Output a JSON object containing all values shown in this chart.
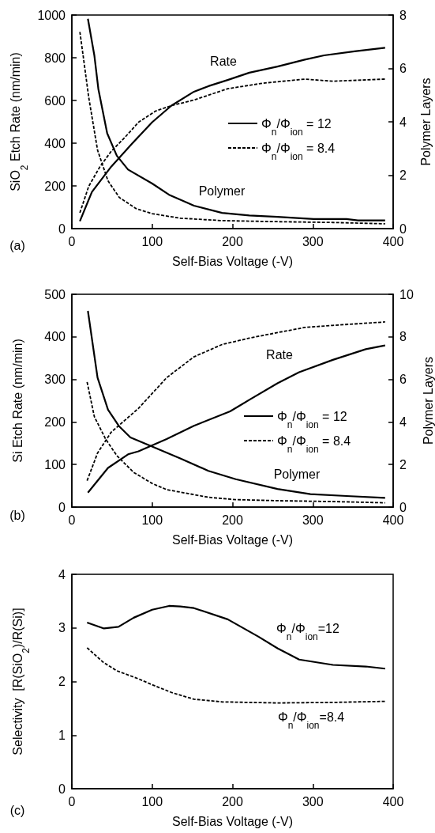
{
  "chart_data": [
    {
      "type": "line",
      "xlabel": "Self-Bias Voltage (-V)",
      "ylabel": "SiO$_{2}$ Etch Rate (nm/min)",
      "y2label": "Polymer Layers",
      "xlim": [
        0,
        400
      ],
      "xticks": [
        0,
        100,
        200,
        300,
        400
      ],
      "ylim": [
        0,
        1000
      ],
      "yticks": [
        0,
        200,
        400,
        600,
        800,
        1000
      ],
      "y2lim": [
        0,
        8
      ],
      "y2ticks": [
        0,
        2,
        4,
        6,
        8
      ],
      "grid": false,
      "legend": "right",
      "marker": "none",
      "annotations": [
        "(a)",
        "Rate",
        "Polymer"
      ],
      "series": [
        {
          "name": "Φ$_{n}$/Φ$_{ion}$ = 12",
          "color": "#000000",
          "line_style": "solid",
          "x": [
            10,
            25,
            49,
            75,
            100,
            124,
            152,
            170,
            194,
            221,
            256,
            290,
            314,
            352,
            390
          ],
          "values": [
            35,
            172,
            290,
            398,
            498,
            576,
            641,
            667,
            696,
            730,
            759,
            791,
            811,
            830,
            847
          ]
        },
        {
          "name": "Φ$_{n}$/Φ$_{ion}$ = 8.4",
          "color": "#000000",
          "line_style": "dashed",
          "x": [
            10,
            21,
            35,
            49,
            66,
            83,
            104,
            124,
            152,
            194,
            238,
            290,
            325,
            390
          ],
          "values": [
            74,
            198,
            290,
            362,
            427,
            498,
            550,
            576,
            602,
            655,
            681,
            700,
            690,
            700
          ]
        },
        {
          "color": "#000000",
          "line_style": "solid",
          "axis": "y2",
          "x": [
            20,
            28,
            33,
            44,
            56,
            70,
            100,
            121,
            152,
            187,
            221,
            256,
            301,
            342,
            356,
            390
          ],
          "values": [
            7.86,
            6.49,
            5.23,
            3.57,
            2.73,
            2.21,
            1.69,
            1.27,
            0.86,
            0.59,
            0.49,
            0.44,
            0.36,
            0.36,
            0.31,
            0.31
          ]
        },
        {
          "color": "#000000",
          "line_style": "dashed",
          "axis": "y2",
          "x": [
            10,
            14,
            21,
            32,
            45,
            59,
            80,
            100,
            135,
            187,
            256,
            325,
            390
          ],
          "values": [
            7.37,
            6.49,
            4.92,
            2.94,
            1.79,
            1.17,
            0.75,
            0.56,
            0.39,
            0.3,
            0.26,
            0.23,
            0.18
          ]
        }
      ]
    },
    {
      "type": "line",
      "xlabel": "Self-Bias Voltage (-V)",
      "ylabel": "Si Etch Rate (nm/min)",
      "y2label": "Polymer Layers",
      "xlim": [
        0,
        400
      ],
      "xticks": [
        0,
        100,
        200,
        300,
        400
      ],
      "ylim": [
        0,
        500
      ],
      "yticks": [
        0,
        100,
        200,
        300,
        400,
        500
      ],
      "y2lim": [
        0,
        10
      ],
      "y2ticks": [
        0,
        2,
        4,
        6,
        8,
        10
      ],
      "grid": false,
      "legend": "right",
      "marker": "none",
      "annotations": [
        "(b)",
        "Rate",
        "Polymer"
      ],
      "series": [
        {
          "name": "Φ$_{n}$/Φ$_{ion}$ = 12",
          "color": "#000000",
          "line_style": "solid",
          "x": [
            20,
            45,
            70,
            83,
            118,
            152,
            197,
            221,
            256,
            283,
            325,
            366,
            390
          ],
          "values": [
            34,
            92,
            124,
            131,
            160,
            191,
            225,
            252,
            291,
            317,
            346,
            371,
            380
          ]
        },
        {
          "name": "Φ$_{n}$/Φ$_{ion}$ = 8.4",
          "color": "#000000",
          "line_style": "dashed",
          "x": [
            19,
            32,
            49,
            83,
            118,
            152,
            187,
            221,
            256,
            290,
            325,
            390
          ],
          "values": [
            62,
            127,
            176,
            232,
            304,
            353,
            382,
            397,
            410,
            422,
            427,
            435
          ]
        },
        {
          "color": "#000000",
          "line_style": "solid",
          "axis": "y2",
          "x": [
            20,
            32,
            45,
            59,
            73,
            100,
            135,
            170,
            204,
            256,
            297,
            342,
            390
          ],
          "values": [
            9.22,
            6.08,
            4.58,
            3.79,
            3.27,
            2.84,
            2.29,
            1.7,
            1.31,
            0.85,
            0.61,
            0.52,
            0.43
          ]
        },
        {
          "color": "#000000",
          "line_style": "dashed",
          "axis": "y2",
          "x": [
            19,
            28,
            42,
            56,
            77,
            100,
            118,
            170,
            204,
            256,
            325,
            390
          ],
          "values": [
            5.88,
            4.25,
            3.2,
            2.42,
            1.63,
            1.11,
            0.82,
            0.46,
            0.35,
            0.3,
            0.26,
            0.2
          ]
        }
      ]
    },
    {
      "type": "line",
      "xlabel": "Self-Bias Voltage (-V)",
      "ylabel": "Selectivity  [R(SiO$_{2}$)/R(Si)]",
      "xlim": [
        0,
        400
      ],
      "xticks": [
        0,
        100,
        200,
        300,
        400
      ],
      "ylim": [
        0,
        4
      ],
      "yticks": [
        0,
        1,
        2,
        3,
        4
      ],
      "grid": false,
      "legend": false,
      "marker": "none",
      "annotations": [
        "(c)",
        "Φ$_{n}$/Φ$_{ion}$=12",
        "Φ$_{n}$/Φ$_{ion}$=8.4"
      ],
      "series": [
        {
          "color": "#000000",
          "line_style": "solid",
          "x": [
            19,
            40,
            58,
            77,
            100,
            121,
            135,
            152,
            194,
            232,
            256,
            283,
            325,
            366,
            390
          ],
          "values": [
            3.1,
            2.99,
            3.02,
            3.19,
            3.34,
            3.41,
            3.4,
            3.37,
            3.16,
            2.84,
            2.62,
            2.41,
            2.31,
            2.28,
            2.24
          ]
        },
        {
          "color": "#000000",
          "line_style": "dashed",
          "x": [
            19,
            39,
            56,
            83,
            100,
            125,
            152,
            187,
            256,
            325,
            390
          ],
          "values": [
            2.63,
            2.36,
            2.2,
            2.05,
            1.94,
            1.79,
            1.67,
            1.62,
            1.6,
            1.61,
            1.63
          ]
        }
      ]
    }
  ]
}
